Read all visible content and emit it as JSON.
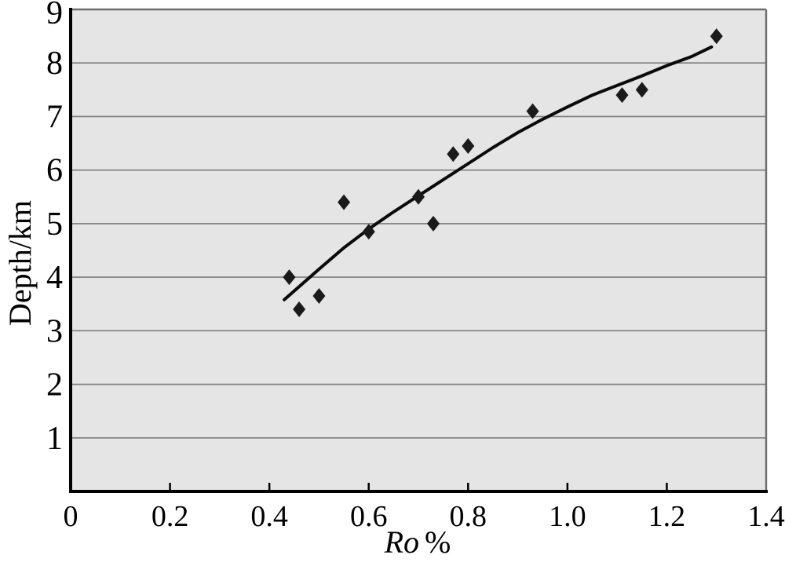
{
  "figure": {
    "background": "#ffffff",
    "plot_background": "#e5e5e5",
    "gridline_color": "#7d7d7d",
    "frame_color": "#6e6e6e",
    "axis_color": "#000000",
    "marker_color": "#1a1a1a",
    "curve_color": "#0a0a0a"
  },
  "chart_data": {
    "type": "scatter",
    "title": "",
    "xlabel": "Ro %",
    "xlabel_italic": "Ro",
    "xlabel_suffix": "%",
    "ylabel": "Depth/km",
    "xlim": [
      0,
      1.4
    ],
    "ylim": [
      0,
      9
    ],
    "x_ticks": [
      0,
      0.2,
      0.4,
      0.6,
      0.8,
      1.0,
      1.2,
      1.4
    ],
    "x_tick_labels": [
      "0",
      "0.2",
      "0.4",
      "0.6",
      "0.8",
      "1.0",
      "1.2",
      "1.4"
    ],
    "y_ticks": [
      1,
      2,
      3,
      4,
      5,
      6,
      7,
      8,
      9
    ],
    "y_tick_labels": [
      "1",
      "2",
      "3",
      "4",
      "5",
      "6",
      "7",
      "8",
      "9"
    ],
    "grid": "horizontal-only",
    "legend_position": "none",
    "series": [
      {
        "name": "measured-depth-points",
        "type": "scatter",
        "marker": "diamond",
        "points": [
          [
            0.44,
            4.0
          ],
          [
            0.46,
            3.4
          ],
          [
            0.5,
            3.65
          ],
          [
            0.55,
            5.4
          ],
          [
            0.6,
            4.85
          ],
          [
            0.7,
            5.5
          ],
          [
            0.73,
            5.0
          ],
          [
            0.77,
            6.3
          ],
          [
            0.8,
            6.45
          ],
          [
            0.93,
            7.1
          ],
          [
            1.11,
            7.4
          ],
          [
            1.15,
            7.5
          ],
          [
            1.3,
            8.5
          ]
        ]
      },
      {
        "name": "trend-curve",
        "type": "line",
        "points": [
          [
            0.43,
            3.58
          ],
          [
            0.5,
            4.15
          ],
          [
            0.55,
            4.55
          ],
          [
            0.6,
            4.9
          ],
          [
            0.65,
            5.22
          ],
          [
            0.7,
            5.52
          ],
          [
            0.75,
            5.82
          ],
          [
            0.8,
            6.12
          ],
          [
            0.85,
            6.42
          ],
          [
            0.9,
            6.7
          ],
          [
            0.95,
            6.95
          ],
          [
            1.0,
            7.18
          ],
          [
            1.05,
            7.4
          ],
          [
            1.1,
            7.58
          ],
          [
            1.15,
            7.76
          ],
          [
            1.2,
            7.95
          ],
          [
            1.25,
            8.12
          ],
          [
            1.29,
            8.3
          ]
        ]
      }
    ]
  }
}
